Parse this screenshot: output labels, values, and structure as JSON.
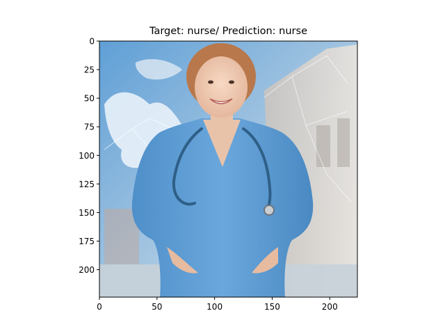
{
  "chart_data": {
    "type": "image",
    "title": "Target: nurse/ Prediction: nurse",
    "image_size": [
      224,
      224
    ],
    "xlim": [
      0,
      224
    ],
    "ylim": [
      224,
      0
    ],
    "x_ticks": [
      0,
      50,
      100,
      150,
      200
    ],
    "y_ticks": [
      0,
      25,
      50,
      75,
      100,
      125,
      150,
      175,
      200
    ],
    "image_content": "smiling nurse in blue scrubs with a stethoscope, hands on hips, world map and hospital background"
  }
}
